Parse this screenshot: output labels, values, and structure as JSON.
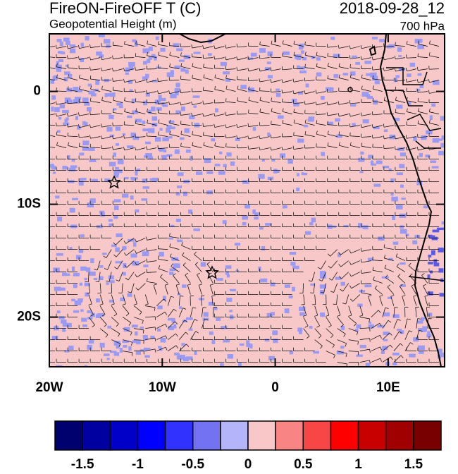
{
  "chart_data": {
    "type": "contour-map",
    "title": "FireON-FireOFF T (C)",
    "subtitle": "Geopotential Height (m)",
    "date": "2018-09-28_12",
    "level": "700 hPa",
    "xlim": [
      -20,
      15
    ],
    "ylim": [
      -24.4,
      5.1
    ],
    "xticks": [
      {
        "value": -20,
        "label": "20W"
      },
      {
        "value": -10,
        "label": "10W"
      },
      0,
      {
        "value": 10,
        "label": "10E"
      }
    ],
    "yticks": [
      0,
      {
        "value": -10,
        "label": "10S"
      },
      {
        "value": -20,
        "label": "20S"
      }
    ],
    "colorbar": {
      "levels": [
        -1.5,
        -1.25,
        -1,
        -0.75,
        -0.5,
        -0.25,
        0,
        0.25,
        0.5,
        0.75,
        1,
        1.25,
        1.5
      ],
      "ticks": [
        -1.5,
        -1,
        -0.5,
        0,
        0.5,
        1,
        1.5
      ],
      "colors": [
        "#00006e",
        "#0000a0",
        "#0000c8",
        "#0000ff",
        "#3232ff",
        "#7272f2",
        "#b4b4fa",
        "#f8c8c8",
        "#f88484",
        "#f84646",
        "#ff0000",
        "#c80000",
        "#a00000",
        "#780000"
      ]
    }
  }
}
